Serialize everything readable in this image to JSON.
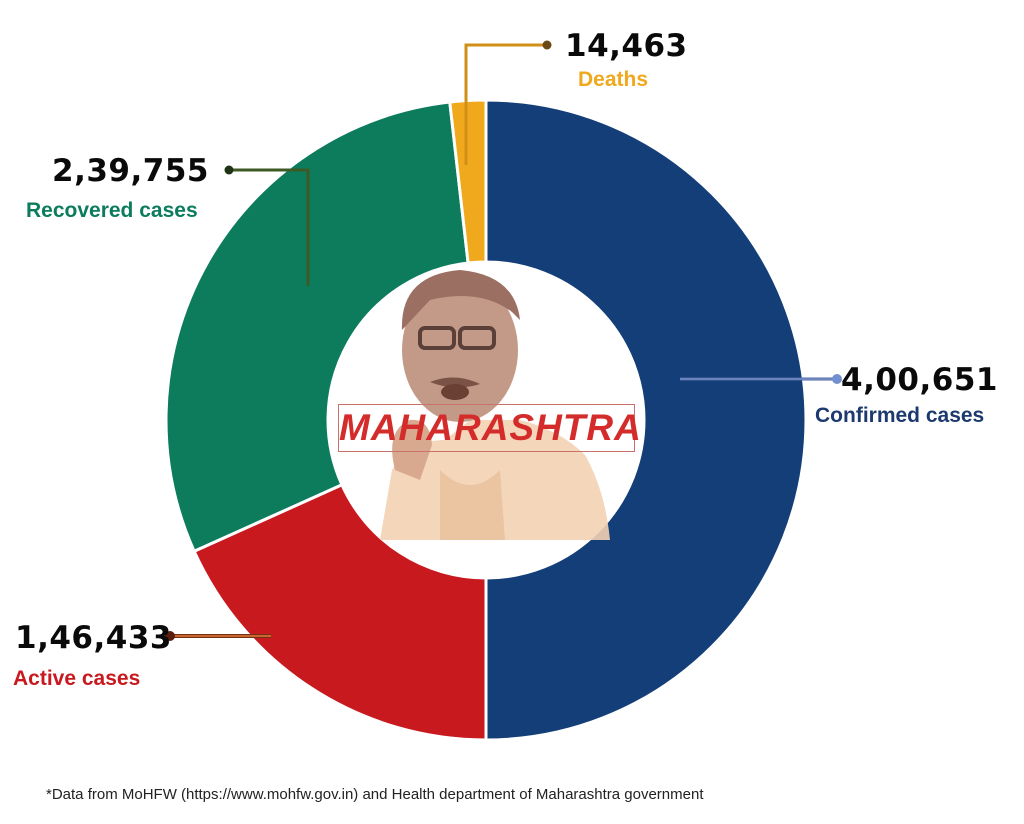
{
  "chart_data": {
    "type": "pie",
    "variant": "donut",
    "title": "MAHARASHTRA",
    "categories": [
      "Confirmed cases",
      "Active cases",
      "Recovered cases",
      "Deaths"
    ],
    "values": [
      400651,
      146433,
      239755,
      14463
    ],
    "value_labels": [
      "4,00,651",
      "1,46,433",
      "2,39,755",
      "14,463"
    ],
    "colors": [
      "#143e78",
      "#c8191f",
      "#0c7c5c",
      "#f0a81c"
    ],
    "label_colors": [
      "#1d3a6e",
      "#c8191f",
      "#0c7c5c",
      "#f0a81c"
    ],
    "layout_note": "Confirmed cases fill the right half; active, recovered and deaths split the left half proportionally",
    "legend_position": "callouts"
  },
  "center": {
    "title": "MAHARASHTRA",
    "portrait": "portrait-illustration"
  },
  "callouts": {
    "confirmed": {
      "value": "4,00,651",
      "label": "Confirmed cases"
    },
    "active": {
      "value": "1,46,433",
      "label": "Active cases"
    },
    "recovered": {
      "value": "2,39,755",
      "label": "Recovered cases"
    },
    "deaths": {
      "value": "14,463",
      "label": "Deaths"
    }
  },
  "footnote": "*Data from MoHFW (https://www.mohfw.gov.in) and Health department of Maharashtra government"
}
